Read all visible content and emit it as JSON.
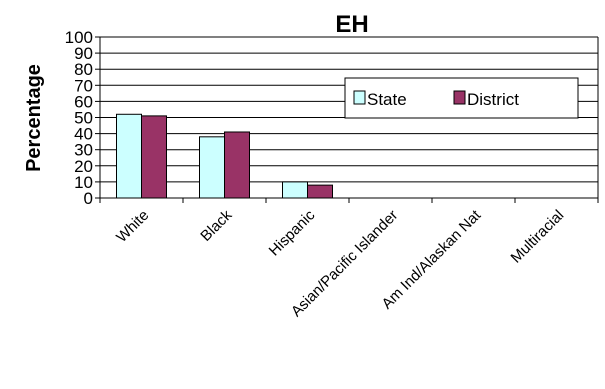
{
  "chart_data": {
    "type": "bar",
    "title": "EH",
    "xlabel": "",
    "ylabel": "Percentage",
    "ylim": [
      0,
      100
    ],
    "yticks": [
      0,
      10,
      20,
      30,
      40,
      50,
      60,
      70,
      80,
      90,
      100
    ],
    "grid": true,
    "legend_position": "top-right",
    "categories": [
      "White",
      "Black",
      "Hispanic",
      "Asian/Pacific Islander",
      "Am Ind/Alaskan Nat",
      "Multiracial"
    ],
    "series": [
      {
        "name": "State",
        "color": "#ccffff",
        "values": [
          52,
          38,
          10,
          0,
          0,
          0
        ]
      },
      {
        "name": "District",
        "color": "#993366",
        "values": [
          51,
          41,
          8,
          0,
          0,
          0
        ]
      }
    ]
  }
}
